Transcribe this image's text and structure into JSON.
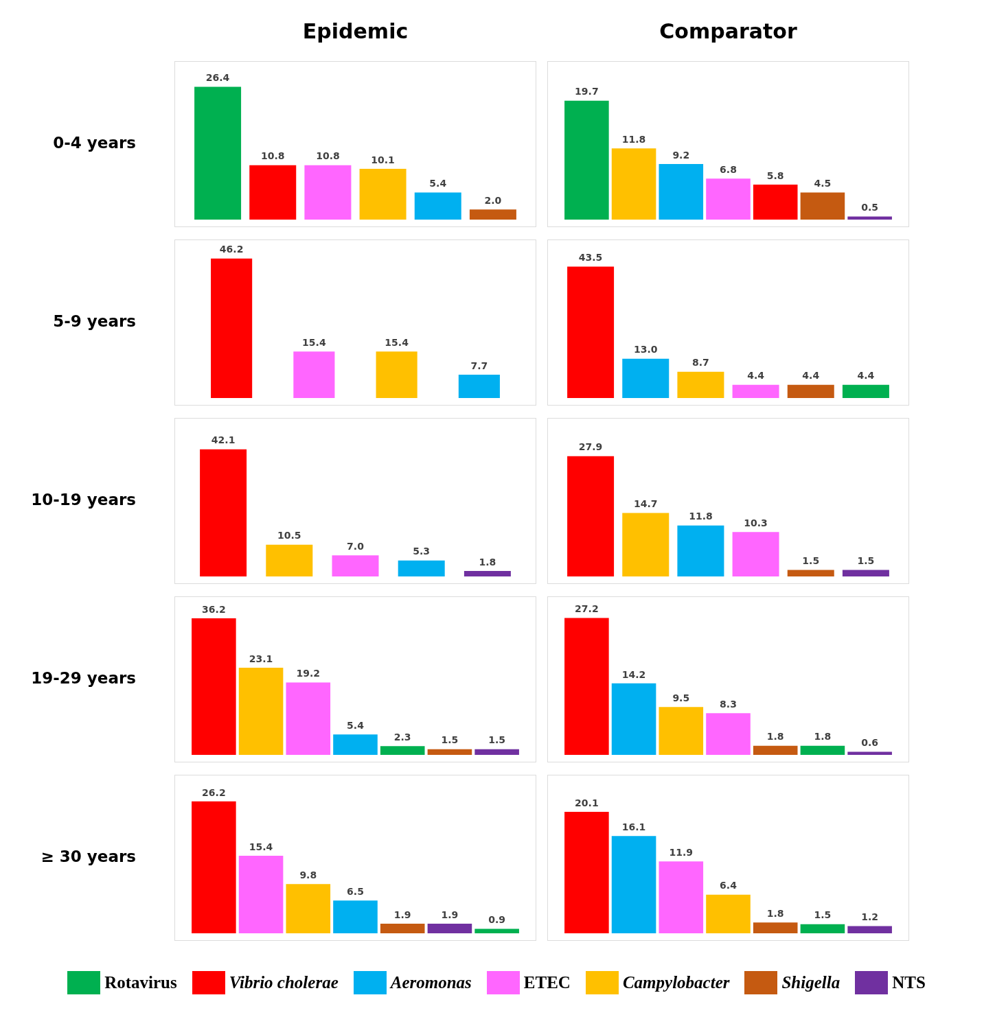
{
  "chart_data": [
    {
      "type": "bar",
      "title": "Epidemic",
      "ylabel": "0-4 years",
      "tick_labels": false,
      "categories": [
        null,
        null,
        null,
        null,
        null,
        null
      ],
      "values": [
        26.4,
        10.8,
        10.8,
        10.1,
        5.4,
        2.0
      ],
      "value_labels": [
        "26.4",
        "10.8",
        "10.8",
        "10.1",
        "5.4",
        "2.0"
      ],
      "colors": [
        "#00b050",
        "#ff0000",
        "#ff66ff",
        "#ffc000",
        "#00b0f0",
        "#c55a11"
      ]
    },
    {
      "type": "bar",
      "title": "Comparator",
      "tick_labels": false,
      "categories": [
        null,
        null,
        null,
        null,
        null,
        null,
        null
      ],
      "values": [
        19.7,
        11.8,
        9.2,
        6.8,
        5.8,
        4.5,
        0.5
      ],
      "value_labels": [
        "19.7",
        "11.8",
        "9.2",
        "6.8",
        "5.8",
        "4.5",
        "0.5"
      ],
      "colors": [
        "#00b050",
        "#ffc000",
        "#00b0f0",
        "#ff66ff",
        "#ff0000",
        "#c55a11",
        "#7030a0"
      ]
    },
    {
      "type": "bar",
      "ylabel": "5-9 years",
      "tick_labels": false,
      "categories": [
        null,
        null,
        null,
        null
      ],
      "values": [
        46.2,
        15.4,
        15.4,
        7.7
      ],
      "value_labels": [
        "46.2",
        "15.4",
        "15.4",
        "7.7"
      ],
      "colors": [
        "#ff0000",
        "#ff66ff",
        "#ffc000",
        "#00b0f0"
      ]
    },
    {
      "type": "bar",
      "tick_labels": false,
      "categories": [
        null,
        null,
        null,
        null,
        null,
        null
      ],
      "values": [
        43.5,
        13.0,
        8.7,
        4.4,
        4.4,
        4.4
      ],
      "value_labels": [
        "43.5",
        "13.0",
        "8.7",
        "4.4",
        "4.4",
        "4.4"
      ],
      "colors": [
        "#ff0000",
        "#00b0f0",
        "#ffc000",
        "#ff66ff",
        "#c55a11",
        "#00b050"
      ]
    },
    {
      "type": "bar",
      "ylabel": "10-19 years",
      "tick_labels": false,
      "categories": [
        null,
        null,
        null,
        null,
        null
      ],
      "values": [
        42.1,
        10.5,
        7.0,
        5.3,
        1.8
      ],
      "value_labels": [
        "42.1",
        "10.5",
        "7.0",
        "5.3",
        "1.8"
      ],
      "colors": [
        "#ff0000",
        "#ffc000",
        "#ff66ff",
        "#00b0f0",
        "#7030a0"
      ]
    },
    {
      "type": "bar",
      "tick_labels": false,
      "categories": [
        null,
        null,
        null,
        null,
        null,
        null
      ],
      "values": [
        27.9,
        14.7,
        11.8,
        10.3,
        1.5,
        1.5
      ],
      "value_labels": [
        "27.9",
        "14.7",
        "11.8",
        "10.3",
        "1.5",
        "1.5"
      ],
      "colors": [
        "#ff0000",
        "#ffc000",
        "#00b0f0",
        "#ff66ff",
        "#c55a11",
        "#7030a0"
      ]
    },
    {
      "type": "bar",
      "ylabel": "19-29 years",
      "tick_labels": false,
      "categories": [
        null,
        null,
        null,
        null,
        null,
        null,
        null
      ],
      "values": [
        36.2,
        23.1,
        19.2,
        5.4,
        2.3,
        1.5,
        1.5
      ],
      "value_labels": [
        "36.2",
        "23.1",
        "19.2",
        "5.4",
        "2.3",
        "1.5",
        "1.5"
      ],
      "colors": [
        "#ff0000",
        "#ffc000",
        "#ff66ff",
        "#00b0f0",
        "#00b050",
        "#c55a11",
        "#7030a0"
      ]
    },
    {
      "type": "bar",
      "tick_labels": false,
      "categories": [
        null,
        null,
        null,
        null,
        null,
        null,
        null
      ],
      "values": [
        27.2,
        14.2,
        9.5,
        8.3,
        1.8,
        1.8,
        0.6
      ],
      "value_labels": [
        "27.2",
        "14.2",
        "9.5",
        "8.3",
        "1.8",
        "1.8",
        "0.6"
      ],
      "colors": [
        "#ff0000",
        "#00b0f0",
        "#ffc000",
        "#ff66ff",
        "#c55a11",
        "#00b050",
        "#7030a0"
      ]
    },
    {
      "type": "bar",
      "ylabel": "≥ 30 years",
      "tick_labels": false,
      "categories": [
        null,
        null,
        null,
        null,
        null,
        null,
        null
      ],
      "values": [
        26.2,
        15.4,
        9.8,
        6.5,
        1.9,
        1.9,
        0.9
      ],
      "value_labels": [
        "26.2",
        "15.4",
        "9.8",
        "6.5",
        "1.9",
        "1.9",
        "0.9"
      ],
      "colors": [
        "#ff0000",
        "#ff66ff",
        "#ffc000",
        "#00b0f0",
        "#c55a11",
        "#7030a0",
        "#00b050"
      ]
    },
    {
      "type": "bar",
      "tick_labels": false,
      "categories": [
        null,
        null,
        null,
        null,
        null,
        null,
        null
      ],
      "values": [
        20.1,
        16.1,
        11.9,
        6.4,
        1.8,
        1.5,
        1.2
      ],
      "value_labels": [
        "20.1",
        "16.1",
        "11.9",
        "6.4",
        "1.8",
        "1.5",
        "1.2"
      ],
      "colors": [
        "#ff0000",
        "#00b0f0",
        "#ff66ff",
        "#ffc000",
        "#c55a11",
        "#00b050",
        "#7030a0"
      ]
    },
    {
      "type": "other",
      "legend": "bottom",
      "series": [
        {
          "name": "Rotavirus",
          "color": "#00b050"
        },
        {
          "name": "Vibrio cholerae",
          "color": "#ff0000"
        },
        {
          "name": "Aeromonas",
          "color": "#00b0f0"
        },
        {
          "name": "ETEC",
          "color": "#ff66ff"
        },
        {
          "name": "Campylobacter",
          "color": "#ffc000"
        },
        {
          "name": "Shigella",
          "color": "#c55a11"
        },
        {
          "name": "NTS",
          "color": "#7030a0"
        }
      ]
    }
  ]
}
